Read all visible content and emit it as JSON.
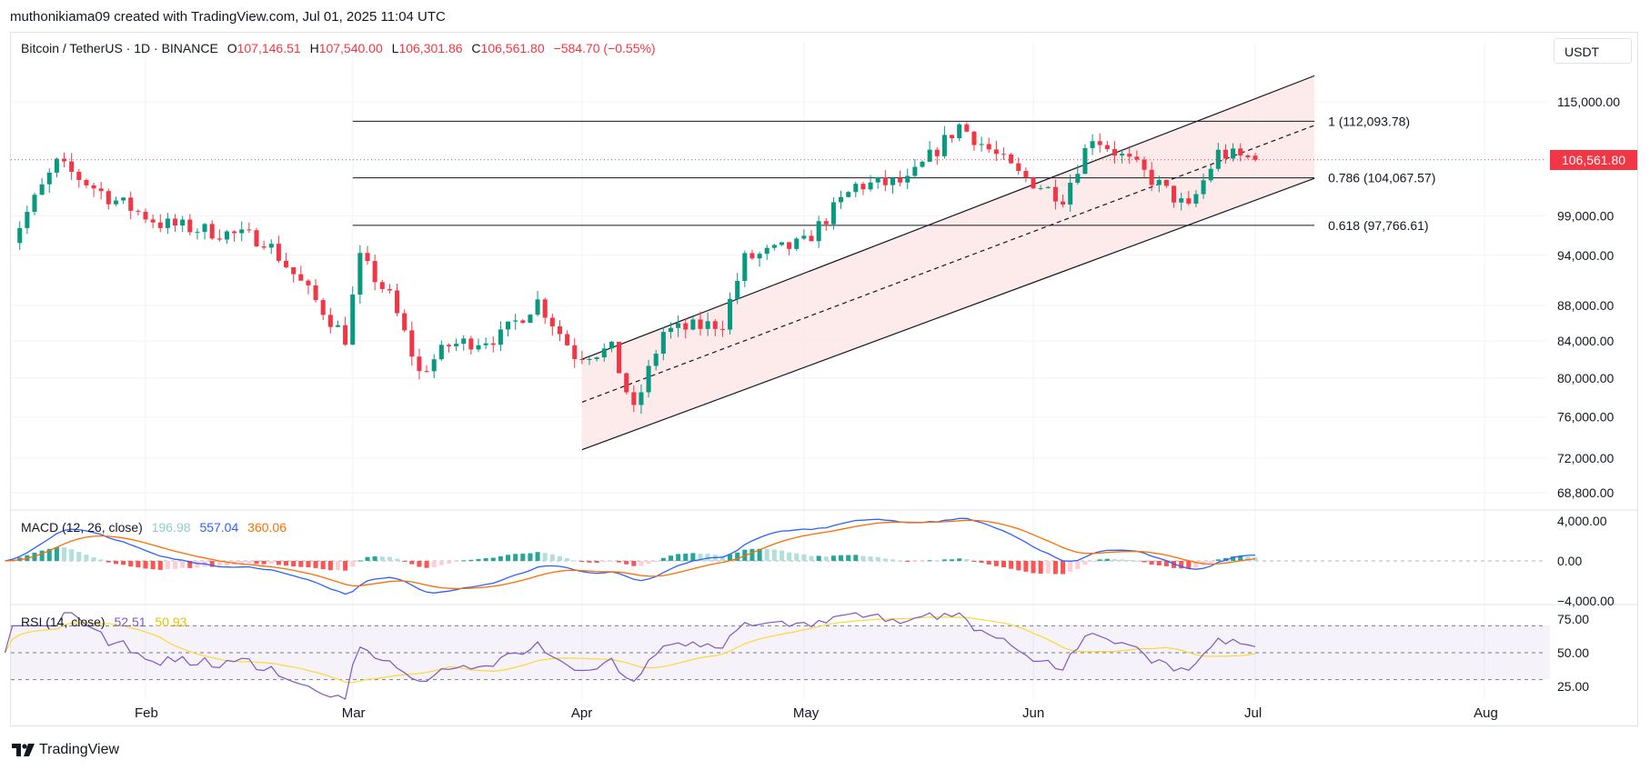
{
  "header": {
    "credit": "muthonikiama09 created with TradingView.com, Jul 01, 2025 11:04 UTC"
  },
  "symbol_bar": {
    "symbol": "Bitcoin / TetherUS · 1D · BINANCE",
    "open_label": "O",
    "open_value": "107,146.51",
    "high_label": "H",
    "high_value": "107,540.00",
    "low_label": "L",
    "low_value": "106,301.86",
    "close_label": "C",
    "close_value": "106,561.80",
    "change": "−584.70 (−0.55%)",
    "currency": "USDT"
  },
  "price_tag": "106,561.80",
  "macd_legend": {
    "title": "MACD (12, 26, close)",
    "hist": "196.98",
    "macd": "557.04",
    "signal": "360.06"
  },
  "rsi_legend": {
    "title": "RSI (14, close)",
    "rsi": "52.51",
    "ma": "50.93"
  },
  "footer": {
    "brand": "TradingView",
    "logo_icon": "tradingview-logo-icon"
  },
  "colors": {
    "up": "#089981",
    "down": "#f23645",
    "macd_line": "#2962ff",
    "signal_line": "#ff6d00",
    "hist_up_strong": "#26a69a",
    "hist_up_weak": "#b2dfdb",
    "hist_down_strong": "#ff5252",
    "hist_down_weak": "#ffcdd2",
    "rsi_line": "#7e57c2",
    "rsi_ma": "#fdd835",
    "channel_fill": "#fde8e8"
  },
  "chart_data": [
    {
      "type": "candlestick",
      "symbol": "Bitcoin / TetherUS",
      "interval": "1D",
      "x_axis_labels": [
        "Feb",
        "Mar",
        "Apr",
        "May",
        "Jun",
        "Jul",
        "Aug"
      ],
      "y_ticks": [
        "115,000.00",
        "99,000.00",
        "94,000.00",
        "88,000.00",
        "84,000.00",
        "80,000.00",
        "76,000.00",
        "72,000.00",
        "68,800.00"
      ],
      "y_tick_values": [
        115000,
        99000,
        94000,
        88000,
        84000,
        80000,
        76000,
        72000,
        68800
      ],
      "fibonacci_levels": [
        {
          "label": "1 (112,093.78)",
          "value": 112093.78
        },
        {
          "label": "0.786 (104,067.57)",
          "value": 104067.57
        },
        {
          "label": "0.618 (97,766.61)",
          "value": 97766.61
        }
      ],
      "ascending_channel": {
        "start_date": "2025-04-01",
        "end_date": "2025-07-09",
        "lower_start": 72800,
        "lower_end": 104000,
        "mid_start": 77500,
        "mid_end": 111500,
        "upper_start": 82000,
        "upper_end": 119000
      },
      "last_close": 106561.8,
      "anchors": [
        [
          "2025-01-13",
          94500
        ],
        [
          "2025-01-20",
          106000
        ],
        [
          "2025-01-27",
          101500
        ],
        [
          "2025-02-03",
          98000
        ],
        [
          "2025-02-10",
          97000
        ],
        [
          "2025-02-17",
          96000
        ],
        [
          "2025-02-24",
          88500
        ],
        [
          "2025-02-28",
          84300
        ],
        [
          "2025-03-02",
          93500
        ],
        [
          "2025-03-06",
          89000
        ],
        [
          "2025-03-10",
          80500
        ],
        [
          "2025-03-14",
          83500
        ],
        [
          "2025-03-21",
          84500
        ],
        [
          "2025-03-26",
          88500
        ],
        [
          "2025-03-31",
          82500
        ],
        [
          "2025-04-05",
          83000
        ],
        [
          "2025-04-08",
          76500
        ],
        [
          "2025-04-12",
          85000
        ],
        [
          "2025-04-20",
          86000
        ],
        [
          "2025-04-23",
          93500
        ],
        [
          "2025-05-01",
          95500
        ],
        [
          "2025-05-08",
          103000
        ],
        [
          "2025-05-15",
          103500
        ],
        [
          "2025-05-22",
          111500
        ],
        [
          "2025-05-30",
          104500
        ],
        [
          "2025-06-05",
          101500
        ],
        [
          "2025-06-09",
          110000
        ],
        [
          "2025-06-15",
          105500
        ],
        [
          "2025-06-22",
          99800
        ],
        [
          "2025-06-26",
          107500
        ],
        [
          "2025-07-01",
          106561.8
        ]
      ]
    },
    {
      "type": "line",
      "name": "MACD (12, 26, close)",
      "y_ticks": [
        "4,000.00",
        "0.00",
        "−4,000.00"
      ],
      "y_tick_values": [
        4000,
        0,
        -4000
      ],
      "last": {
        "histogram": 196.98,
        "macd": 557.04,
        "signal": 360.06
      }
    },
    {
      "type": "line",
      "name": "RSI (14, close)",
      "y_ticks": [
        "75.00",
        "50.00",
        "25.00"
      ],
      "y_tick_values": [
        75,
        50,
        25
      ],
      "band": [
        30,
        70
      ],
      "last": {
        "rsi": 52.51,
        "ma": 50.93
      }
    }
  ]
}
